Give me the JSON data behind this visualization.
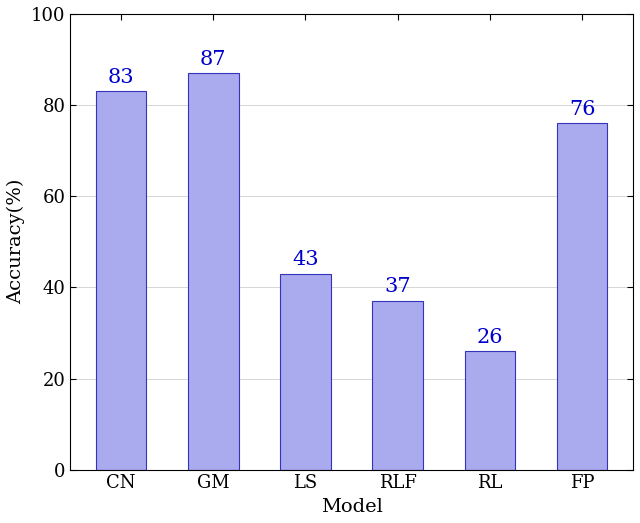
{
  "categories": [
    "CN",
    "GM",
    "LS",
    "RLF",
    "RL",
    "FP"
  ],
  "values": [
    83,
    87,
    43,
    37,
    26,
    76
  ],
  "bar_color": "#aaaaee",
  "bar_edgecolor": "#3333bb",
  "label_color": "#0000cc",
  "ylabel": "Accuracy(%)",
  "xlabel": "Model",
  "ylim": [
    0,
    100
  ],
  "yticks": [
    0,
    20,
    40,
    60,
    80,
    100
  ],
  "label_fontsize": 14,
  "tick_fontsize": 13,
  "bar_label_fontsize": 15,
  "bar_width": 0.55,
  "figwidth": 6.4,
  "figheight": 5.23
}
